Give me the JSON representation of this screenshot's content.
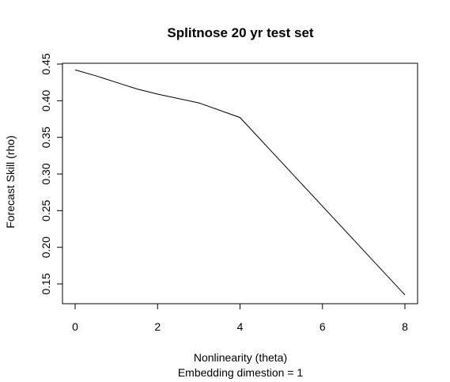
{
  "chart_data": {
    "type": "line",
    "title": "Splitnose 20 yr test set",
    "xlabel": "Nonlinearity (theta)",
    "subtitle": "Embedding dimestion =  1",
    "ylabel": "Forecast Skill (rho)",
    "xlim": [
      0,
      8
    ],
    "ylim": [
      0.15,
      0.45
    ],
    "x_ticks": [
      0,
      2,
      4,
      6,
      8
    ],
    "x_tick_labels": [
      "0",
      "2",
      "4",
      "6",
      "8"
    ],
    "y_ticks": [
      0.15,
      0.2,
      0.25,
      0.3,
      0.35,
      0.4,
      0.45
    ],
    "y_tick_labels": [
      "0.15",
      "0.20",
      "0.25",
      "0.30",
      "0.35",
      "0.40",
      "0.45"
    ],
    "grid": false,
    "series": [
      {
        "color": "#000000",
        "x": [
          0,
          0.5,
          1,
          1.5,
          2,
          3,
          4,
          8
        ],
        "y": [
          0.442,
          0.434,
          0.425,
          0.416,
          0.409,
          0.397,
          0.377,
          0.135
        ]
      }
    ]
  }
}
